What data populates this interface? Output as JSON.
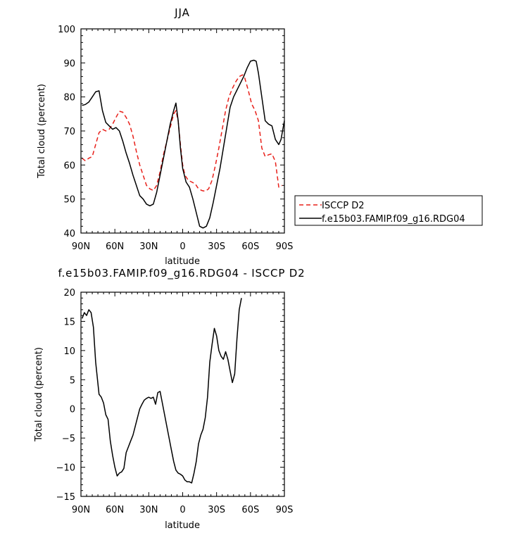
{
  "chart_data": [
    {
      "type": "line",
      "title": "JJA",
      "xlabel": "latitude",
      "ylabel": "Total cloud (percent)",
      "xlim": [
        90,
        -90
      ],
      "ylim": [
        40,
        100
      ],
      "x_ticks": [
        {
          "value": 90,
          "label": "90N"
        },
        {
          "value": 60,
          "label": "60N"
        },
        {
          "value": 30,
          "label": "30N"
        },
        {
          "value": 0,
          "label": "0"
        },
        {
          "value": -30,
          "label": "30S"
        },
        {
          "value": -60,
          "label": "60S"
        },
        {
          "value": -90,
          "label": "90S"
        }
      ],
      "y_ticks": [
        {
          "value": 40,
          "label": "40"
        },
        {
          "value": 50,
          "label": "50"
        },
        {
          "value": 60,
          "label": "60"
        },
        {
          "value": 70,
          "label": "70"
        },
        {
          "value": 80,
          "label": "80"
        },
        {
          "value": 90,
          "label": "90"
        },
        {
          "value": 100,
          "label": "100"
        }
      ],
      "legend_position": "right",
      "series": [
        {
          "name": "ISCCP D2",
          "color": "#e8201a",
          "dash": "dashed",
          "points": [
            [
              89,
              62
            ],
            [
              86,
              61.2
            ],
            [
              83,
              62
            ],
            [
              80,
              62.5
            ],
            [
              77,
              66
            ],
            [
              74,
              69.5
            ],
            [
              71,
              70.5
            ],
            [
              68,
              70
            ],
            [
              65,
              70.5
            ],
            [
              62,
              72
            ],
            [
              59,
              74
            ],
            [
              56,
              75.8
            ],
            [
              53,
              75.5
            ],
            [
              50,
              74
            ],
            [
              47,
              72
            ],
            [
              44,
              68.5
            ],
            [
              41,
              64
            ],
            [
              38,
              60
            ],
            [
              35,
              57
            ],
            [
              32,
              54
            ],
            [
              29,
              53
            ],
            [
              26,
              52.5
            ],
            [
              23,
              54
            ],
            [
              20,
              58
            ],
            [
              17,
              63
            ],
            [
              14,
              67
            ],
            [
              11,
              71
            ],
            [
              8,
              75
            ],
            [
              6,
              76
            ],
            [
              4,
              73
            ],
            [
              2,
              66
            ],
            [
              0,
              60
            ],
            [
              -2,
              57
            ],
            [
              -5,
              55.5
            ],
            [
              -8,
              55
            ],
            [
              -11,
              54.5
            ],
            [
              -14,
              53
            ],
            [
              -17,
              52.5
            ],
            [
              -20,
              52.3
            ],
            [
              -23,
              53
            ],
            [
              -26,
              55.5
            ],
            [
              -29,
              60
            ],
            [
              -32,
              65
            ],
            [
              -35,
              70.5
            ],
            [
              -38,
              76
            ],
            [
              -41,
              80
            ],
            [
              -44,
              82.5
            ],
            [
              -47,
              84.5
            ],
            [
              -50,
              86
            ],
            [
              -53,
              86.5
            ],
            [
              -55,
              85.5
            ],
            [
              -58,
              82
            ],
            [
              -61,
              78
            ],
            [
              -64,
              76
            ],
            [
              -67,
              73
            ],
            [
              -70,
              65
            ],
            [
              -73,
              62.5
            ],
            [
              -76,
              63
            ],
            [
              -79,
              63.3
            ],
            [
              -82,
              61
            ],
            [
              -85,
              53.5
            ],
            [
              -88,
              54
            ]
          ]
        },
        {
          "name": "f.e15b03.FAMIP.f09_g16.RDG04",
          "color": "#000000",
          "dash": "solid",
          "points": [
            [
              89,
              77.5
            ],
            [
              86,
              77.8
            ],
            [
              83,
              78.5
            ],
            [
              80,
              80
            ],
            [
              77,
              81.5
            ],
            [
              74,
              81.8
            ],
            [
              71,
              76
            ],
            [
              68,
              72.5
            ],
            [
              65,
              71.5
            ],
            [
              62,
              70.5
            ],
            [
              59,
              71
            ],
            [
              56,
              70
            ],
            [
              53,
              67
            ],
            [
              50,
              63.5
            ],
            [
              47,
              60.5
            ],
            [
              44,
              57
            ],
            [
              41,
              54
            ],
            [
              38,
              51
            ],
            [
              35,
              50
            ],
            [
              32,
              48.5
            ],
            [
              29,
              48
            ],
            [
              26,
              48.5
            ],
            [
              23,
              52
            ],
            [
              20,
              57
            ],
            [
              17,
              62
            ],
            [
              14,
              67
            ],
            [
              11,
              72
            ],
            [
              8,
              76
            ],
            [
              6,
              78.2
            ],
            [
              4,
              73
            ],
            [
              2,
              65
            ],
            [
              0,
              59
            ],
            [
              -3,
              55
            ],
            [
              -6,
              53.5
            ],
            [
              -9,
              50
            ],
            [
              -12,
              46
            ],
            [
              -15,
              42
            ],
            [
              -18,
              41.5
            ],
            [
              -21,
              42
            ],
            [
              -24,
              44.5
            ],
            [
              -27,
              49
            ],
            [
              -30,
              54
            ],
            [
              -33,
              59
            ],
            [
              -36,
              65
            ],
            [
              -39,
              71
            ],
            [
              -42,
              77
            ],
            [
              -45,
              80
            ],
            [
              -48,
              82
            ],
            [
              -51,
              84
            ],
            [
              -54,
              86
            ],
            [
              -57,
              88.5
            ],
            [
              -60,
              90.5
            ],
            [
              -63,
              90.8
            ],
            [
              -65,
              90.5
            ],
            [
              -67,
              87
            ],
            [
              -70,
              80
            ],
            [
              -73,
              73
            ],
            [
              -76,
              72
            ],
            [
              -79,
              71.5
            ],
            [
              -82,
              67.5
            ],
            [
              -85,
              66
            ],
            [
              -87,
              67.5
            ],
            [
              -90,
              73
            ]
          ]
        }
      ]
    },
    {
      "type": "line",
      "title": "f.e15b03.FAMIP.f09_g16.RDG04 - ISCCP D2",
      "xlabel": "latitude",
      "ylabel": "Total cloud (percent)",
      "xlim": [
        90,
        -90
      ],
      "ylim": [
        -15,
        20
      ],
      "x_ticks": [
        {
          "value": 90,
          "label": "90N"
        },
        {
          "value": 60,
          "label": "60N"
        },
        {
          "value": 30,
          "label": "30N"
        },
        {
          "value": 0,
          "label": "0"
        },
        {
          "value": -30,
          "label": "30S"
        },
        {
          "value": -60,
          "label": "60S"
        },
        {
          "value": -90,
          "label": "90S"
        }
      ],
      "y_ticks": [
        {
          "value": -15,
          "label": "−15"
        },
        {
          "value": -10,
          "label": "−10"
        },
        {
          "value": -5,
          "label": "−5"
        },
        {
          "value": 0,
          "label": "0"
        },
        {
          "value": 5,
          "label": "5"
        },
        {
          "value": 10,
          "label": "10"
        },
        {
          "value": 15,
          "label": "15"
        },
        {
          "value": 20,
          "label": "20"
        }
      ],
      "series": [
        {
          "color": "#000000",
          "dash": "solid",
          "points": [
            [
              89,
              15.5
            ],
            [
              87,
              16.5
            ],
            [
              85,
              16
            ],
            [
              83,
              17
            ],
            [
              81,
              16.5
            ],
            [
              79,
              14
            ],
            [
              77,
              8
            ],
            [
              74,
              2.5
            ],
            [
              72,
              2
            ],
            [
              70,
              1
            ],
            [
              68,
              -1
            ],
            [
              66,
              -1.8
            ],
            [
              64,
              -5.5
            ],
            [
              62,
              -8
            ],
            [
              60,
              -10
            ],
            [
              58,
              -11.5
            ],
            [
              56,
              -11
            ],
            [
              54,
              -10.8
            ],
            [
              52,
              -10.2
            ],
            [
              50,
              -7.5
            ],
            [
              48,
              -6.5
            ],
            [
              46,
              -5.5
            ],
            [
              44,
              -4.5
            ],
            [
              42,
              -3
            ],
            [
              40,
              -1.5
            ],
            [
              38,
              0
            ],
            [
              36,
              0.8
            ],
            [
              34,
              1.5
            ],
            [
              32,
              1.8
            ],
            [
              30,
              2
            ],
            [
              28,
              1.8
            ],
            [
              26,
              2
            ],
            [
              24,
              0.8
            ],
            [
              22,
              2.8
            ],
            [
              20,
              3
            ],
            [
              18,
              1
            ],
            [
              16,
              -1
            ],
            [
              14,
              -3
            ],
            [
              12,
              -5
            ],
            [
              10,
              -7
            ],
            [
              8,
              -9
            ],
            [
              6,
              -10.5
            ],
            [
              4,
              -11
            ],
            [
              2,
              -11.2
            ],
            [
              0,
              -11.5
            ],
            [
              -2,
              -12.2
            ],
            [
              -4,
              -12.5
            ],
            [
              -6,
              -12.5
            ],
            [
              -8,
              -12.7
            ],
            [
              -10,
              -11
            ],
            [
              -12,
              -9
            ],
            [
              -14,
              -6
            ],
            [
              -16,
              -4.5
            ],
            [
              -18,
              -3.5
            ],
            [
              -20,
              -1.5
            ],
            [
              -22,
              2
            ],
            [
              -24,
              8
            ],
            [
              -26,
              11
            ],
            [
              -28,
              13.8
            ],
            [
              -30,
              12.5
            ],
            [
              -32,
              10
            ],
            [
              -34,
              9
            ],
            [
              -36,
              8.5
            ],
            [
              -38,
              9.8
            ],
            [
              -40,
              8.5
            ],
            [
              -42,
              6.5
            ],
            [
              -44,
              4.5
            ],
            [
              -46,
              6
            ],
            [
              -48,
              12
            ],
            [
              -50,
              17
            ],
            [
              -52,
              19
            ]
          ]
        }
      ]
    }
  ]
}
